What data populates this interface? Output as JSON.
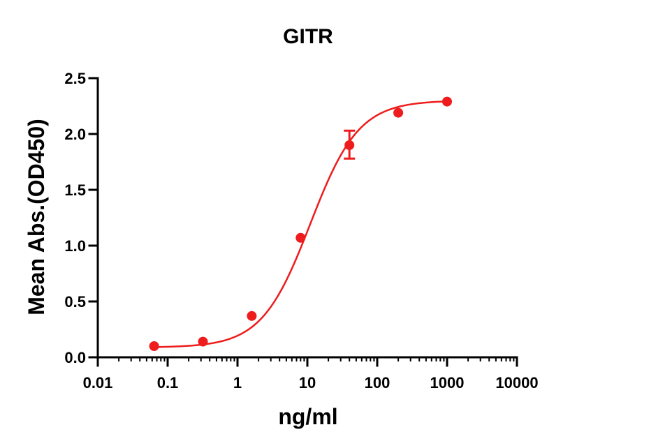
{
  "chart_data": {
    "type": "scatter",
    "title": "GITR",
    "xlabel": "ng/ml",
    "ylabel": "Mean Abs.(OD450)",
    "x_scale": "log",
    "xlim": [
      0.01,
      10000
    ],
    "ylim": [
      0.0,
      2.5
    ],
    "x_ticks": [
      0.01,
      0.1,
      1,
      10,
      100,
      1000,
      10000
    ],
    "x_tick_labels": [
      "0.01",
      "0.1",
      "1",
      "10",
      "100",
      "1000",
      "10000"
    ],
    "y_ticks": [
      0.0,
      0.5,
      1.0,
      1.5,
      2.0,
      2.5
    ],
    "y_tick_labels": [
      "0.0",
      "0.5",
      "1.0",
      "1.5",
      "2.0",
      "2.5"
    ],
    "grid": false,
    "color": "#ee1c1c",
    "series": [
      {
        "x": [
          0.064,
          0.32,
          1.6,
          8,
          40,
          200,
          1000
        ],
        "y": [
          0.1,
          0.14,
          0.37,
          1.07,
          1.9,
          2.19,
          2.29
        ],
        "error_upper": [
          0,
          0,
          0,
          0,
          0.13,
          0,
          0
        ],
        "error_lower": [
          0,
          0,
          0,
          0,
          0.12,
          0,
          0
        ],
        "fit": {
          "model": "4PL",
          "bottom": 0.088,
          "top": 2.3,
          "ec50": 11.0,
          "hill": 1.25
        }
      }
    ]
  }
}
